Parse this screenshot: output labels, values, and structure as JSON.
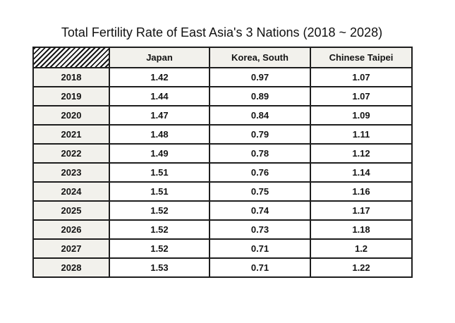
{
  "title": "Total Fertility Rate of East Asia's 3 Nations (2018 ~ 2028)",
  "colors": {
    "value_blue": "#3f6eb5",
    "value_red": "#c9555f",
    "text_black": "#141414",
    "cell_border": "#1e1e1e",
    "header_shade": "#f2f1ec"
  },
  "table": {
    "corner": "hatched-empty",
    "columns": [
      "Japan",
      "Korea, South",
      "Chinese Taipei"
    ],
    "rows": [
      {
        "year": "2018",
        "cells": [
          {
            "v": "1.42",
            "c": "blue"
          },
          {
            "v": "0.97",
            "c": "red"
          },
          {
            "v": "1.07",
            "c": "blue"
          }
        ]
      },
      {
        "year": "2019",
        "cells": [
          {
            "v": "1.44",
            "c": "black"
          },
          {
            "v": "0.89",
            "c": "black"
          },
          {
            "v": "1.07",
            "c": "black"
          }
        ]
      },
      {
        "year": "2020",
        "cells": [
          {
            "v": "1.47",
            "c": "black"
          },
          {
            "v": "0.84",
            "c": "black"
          },
          {
            "v": "1.09",
            "c": "black"
          }
        ]
      },
      {
        "year": "2021",
        "cells": [
          {
            "v": "1.48",
            "c": "black"
          },
          {
            "v": "0.79",
            "c": "black"
          },
          {
            "v": "1.11",
            "c": "black"
          }
        ]
      },
      {
        "year": "2022",
        "cells": [
          {
            "v": "1.49",
            "c": "black"
          },
          {
            "v": "0.78",
            "c": "black"
          },
          {
            "v": "1.12",
            "c": "black"
          }
        ]
      },
      {
        "year": "2023",
        "cells": [
          {
            "v": "1.51",
            "c": "black"
          },
          {
            "v": "0.76",
            "c": "black"
          },
          {
            "v": "1.14",
            "c": "black"
          }
        ]
      },
      {
        "year": "2024",
        "cells": [
          {
            "v": "1.51",
            "c": "black"
          },
          {
            "v": "0.75",
            "c": "black"
          },
          {
            "v": "1.16",
            "c": "black"
          }
        ]
      },
      {
        "year": "2025",
        "cells": [
          {
            "v": "1.52",
            "c": "black"
          },
          {
            "v": "0.74",
            "c": "black"
          },
          {
            "v": "1.17",
            "c": "black"
          }
        ]
      },
      {
        "year": "2026",
        "cells": [
          {
            "v": "1.52",
            "c": "black"
          },
          {
            "v": "0.73",
            "c": "black"
          },
          {
            "v": "1.18",
            "c": "black"
          }
        ]
      },
      {
        "year": "2027",
        "cells": [
          {
            "v": "1.52",
            "c": "black"
          },
          {
            "v": "0.71",
            "c": "black"
          },
          {
            "v": "1.2",
            "c": "black"
          }
        ]
      },
      {
        "year": "2028",
        "cells": [
          {
            "v": "1.53",
            "c": "red"
          },
          {
            "v": "0.71",
            "c": "blue"
          },
          {
            "v": "1.22",
            "c": "red"
          }
        ]
      }
    ]
  },
  "chart_data": {
    "type": "table",
    "title": "Total Fertility Rate of East Asia's 3 Nations (2018 ~ 2028)",
    "categories": [
      "2018",
      "2019",
      "2020",
      "2021",
      "2022",
      "2023",
      "2024",
      "2025",
      "2026",
      "2027",
      "2028"
    ],
    "series": [
      {
        "name": "Japan",
        "values": [
          1.42,
          1.44,
          1.47,
          1.48,
          1.49,
          1.51,
          1.51,
          1.52,
          1.52,
          1.52,
          1.53
        ]
      },
      {
        "name": "Korea, South",
        "values": [
          0.97,
          0.89,
          0.84,
          0.79,
          0.78,
          0.76,
          0.75,
          0.74,
          0.73,
          0.71,
          0.71
        ]
      },
      {
        "name": "Chinese Taipei",
        "values": [
          1.07,
          1.07,
          1.09,
          1.11,
          1.12,
          1.14,
          1.16,
          1.17,
          1.18,
          1.2,
          1.22
        ]
      }
    ],
    "highlighted_cells": [
      {
        "year": "2018",
        "series": "Japan",
        "color": "blue"
      },
      {
        "year": "2018",
        "series": "Korea, South",
        "color": "red"
      },
      {
        "year": "2018",
        "series": "Chinese Taipei",
        "color": "blue"
      },
      {
        "year": "2028",
        "series": "Japan",
        "color": "red"
      },
      {
        "year": "2028",
        "series": "Korea, South",
        "color": "blue"
      },
      {
        "year": "2028",
        "series": "Chinese Taipei",
        "color": "red"
      }
    ]
  }
}
